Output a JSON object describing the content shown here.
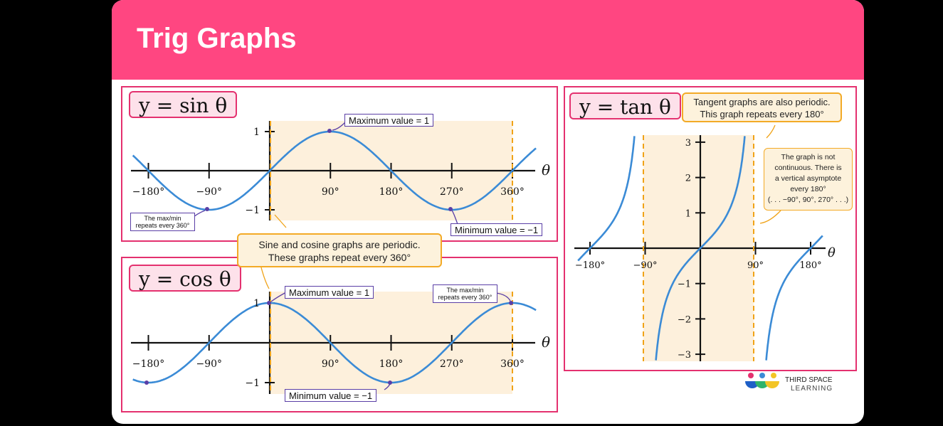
{
  "title": "Trig Graphs",
  "colors": {
    "brand": "#ff4681",
    "panel_border": "#e4316f",
    "curve": "#3b8bd6",
    "shade": "#fdf0dc",
    "asymptote": "#f0a318",
    "note_border": "#5a3fa6"
  },
  "panels": {
    "sin": {
      "label": "y = sin θ",
      "max_note": "Maximum value = 1",
      "min_note": "Minimum value = −1",
      "repeat_note": "The max/min repeats every 360°"
    },
    "cos": {
      "label": "y = cos θ",
      "max_note": "Maximum value = 1",
      "min_note": "Minimum value = −1",
      "repeat_note": "The max/min repeats every 360°"
    },
    "tan": {
      "label": "y = tan θ",
      "periodic_callout_1": "Tangent graphs are also periodic.",
      "periodic_callout_2": "This graph repeats every 180°",
      "asym_1": "The graph is not",
      "asym_2": "continuous. There is",
      "asym_3": "a vertical asymptote",
      "asym_4": "every  180°",
      "asym_5": "(. . . −90°, 90°, 270° . . .)"
    }
  },
  "periodic_callout": {
    "line1": "Sine and cosine graphs are periodic.",
    "line2": "These graphs repeat every 360°"
  },
  "logo": {
    "line1": "THIRD SPACE",
    "line2": "LEARNING"
  },
  "chart_data": [
    {
      "type": "line",
      "title": "y = sin θ",
      "function": "sin",
      "xlabel": "θ",
      "ylabel": "",
      "x_ticks": [
        "−180°",
        "−90°",
        "90°",
        "180°",
        "270°",
        "360°"
      ],
      "y_ticks": [
        "1",
        "−1"
      ],
      "xlim": [
        -200,
        370
      ],
      "ylim": [
        -1,
        1
      ],
      "shaded_period": [
        0,
        360
      ]
    },
    {
      "type": "line",
      "title": "y = cos θ",
      "function": "cos",
      "xlabel": "θ",
      "ylabel": "",
      "x_ticks": [
        "−180°",
        "−90°",
        "90°",
        "180°",
        "270°",
        "360°"
      ],
      "y_ticks": [
        "1",
        "−1"
      ],
      "xlim": [
        -200,
        370
      ],
      "ylim": [
        -1,
        1
      ],
      "shaded_period": [
        0,
        360
      ]
    },
    {
      "type": "line",
      "title": "y = tan θ",
      "function": "tan",
      "xlabel": "θ",
      "ylabel": "",
      "x_ticks": [
        "−180°",
        "−90°",
        "90°",
        "180°"
      ],
      "y_ticks": [
        "3",
        "2",
        "1",
        "−1",
        "−2",
        "−3"
      ],
      "xlim": [
        -190,
        190
      ],
      "ylim": [
        -3.2,
        3.2
      ],
      "shaded_period": [
        -90,
        90
      ],
      "asymptotes": [
        -90,
        90
      ]
    }
  ]
}
